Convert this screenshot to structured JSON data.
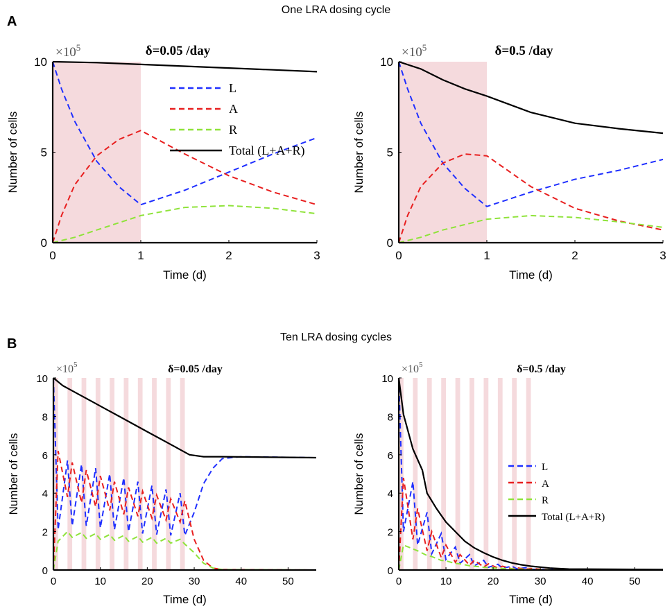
{
  "sections": [
    {
      "letter": "A",
      "title": "One LRA dosing cycle"
    },
    {
      "letter": "B",
      "title": "Ten LRA dosing cycles"
    }
  ],
  "colors": {
    "L": "#1f2fff",
    "A": "#e81f1f",
    "R": "#8fe33a",
    "Total": "#000000",
    "dose_band": "#f5dadd"
  },
  "chart_data": [
    {
      "type": "line",
      "section": "A",
      "title": "δ=0.05 /day",
      "multiplier": "×10^5",
      "xlabel": "Time (d)",
      "ylabel": "Number of cells",
      "xlim": [
        0,
        3
      ],
      "ylim": [
        0,
        10
      ],
      "xticks": [
        "0",
        "1",
        "2",
        "3"
      ],
      "yticks": [
        "0",
        "5",
        "10"
      ],
      "dose_intervals": [
        [
          0,
          1
        ]
      ],
      "legend": [
        "L",
        "A",
        "R",
        "Total (L+A+R)"
      ],
      "legend_position": "top-right",
      "series": [
        {
          "name": "L",
          "x": [
            0,
            0.1,
            0.25,
            0.5,
            0.75,
            1,
            1.5,
            2,
            2.5,
            3
          ],
          "values": [
            10,
            8.5,
            6.7,
            4.5,
            3.1,
            2.1,
            2.9,
            3.9,
            4.9,
            5.8
          ]
        },
        {
          "name": "A",
          "x": [
            0,
            0.1,
            0.25,
            0.5,
            0.75,
            1,
            1.5,
            2,
            2.5,
            3
          ],
          "values": [
            0,
            1.5,
            3.2,
            4.8,
            5.7,
            6.2,
            4.9,
            3.7,
            2.8,
            2.1
          ]
        },
        {
          "name": "R",
          "x": [
            0,
            0.25,
            0.5,
            0.75,
            1,
            1.5,
            2,
            2.5,
            3
          ],
          "values": [
            0,
            0.3,
            0.7,
            1.1,
            1.5,
            1.95,
            2.05,
            1.9,
            1.6
          ]
        },
        {
          "name": "Total (L+A+R)",
          "x": [
            0,
            0.5,
            1,
            1.5,
            2,
            2.5,
            3
          ],
          "values": [
            10,
            9.95,
            9.85,
            9.75,
            9.65,
            9.55,
            9.45
          ]
        }
      ]
    },
    {
      "type": "line",
      "section": "A",
      "title": "δ=0.5 /day",
      "multiplier": "×10^5",
      "xlabel": "Time (d)",
      "ylabel": "Number of cells",
      "xlim": [
        0,
        3
      ],
      "ylim": [
        0,
        10
      ],
      "xticks": [
        "0",
        "1",
        "2",
        "3"
      ],
      "yticks": [
        "0",
        "5",
        "10"
      ],
      "dose_intervals": [
        [
          0,
          1
        ]
      ],
      "series": [
        {
          "name": "L",
          "x": [
            0,
            0.1,
            0.25,
            0.5,
            0.75,
            1,
            1.5,
            2,
            2.5,
            3
          ],
          "values": [
            10,
            8.5,
            6.6,
            4.4,
            3.0,
            2.0,
            2.8,
            3.5,
            4.0,
            4.6
          ]
        },
        {
          "name": "A",
          "x": [
            0,
            0.1,
            0.25,
            0.5,
            0.75,
            1,
            1.5,
            2,
            2.5,
            3
          ],
          "values": [
            0,
            1.5,
            3.1,
            4.4,
            4.9,
            4.8,
            3.1,
            1.9,
            1.2,
            0.7
          ]
        },
        {
          "name": "R",
          "x": [
            0,
            0.25,
            0.5,
            0.75,
            1,
            1.5,
            2,
            2.5,
            3
          ],
          "values": [
            0,
            0.3,
            0.7,
            1.0,
            1.3,
            1.5,
            1.4,
            1.15,
            0.85
          ]
        },
        {
          "name": "Total (L+A+R)",
          "x": [
            0,
            0.25,
            0.5,
            0.75,
            1,
            1.5,
            2,
            2.5,
            3
          ],
          "values": [
            10,
            9.6,
            9.0,
            8.5,
            8.1,
            7.2,
            6.6,
            6.3,
            6.05
          ]
        }
      ]
    },
    {
      "type": "line",
      "section": "B",
      "title": "δ=0.05 /day",
      "multiplier": "×10^5",
      "xlabel": "Time (d)",
      "ylabel": "Number of cells",
      "xlim": [
        0,
        56
      ],
      "ylim": [
        0,
        10
      ],
      "xticks": [
        "0",
        "10",
        "20",
        "30",
        "40",
        "50"
      ],
      "yticks": [
        "0",
        "2",
        "4",
        "6",
        "8",
        "10"
      ],
      "dose_intervals": [
        [
          0,
          1
        ],
        [
          3,
          4
        ],
        [
          6,
          7
        ],
        [
          9,
          10
        ],
        [
          12,
          13
        ],
        [
          15,
          16
        ],
        [
          18,
          19
        ],
        [
          21,
          22
        ],
        [
          24,
          25
        ],
        [
          27,
          28
        ]
      ],
      "series": [
        {
          "name": "L",
          "x": [
            0,
            1,
            3,
            4,
            6,
            7,
            9,
            10,
            12,
            13,
            15,
            16,
            18,
            19,
            21,
            22,
            24,
            25,
            27,
            28,
            30,
            32,
            34,
            36,
            40,
            56
          ],
          "values": [
            10,
            2.1,
            5.7,
            2.3,
            5.5,
            2.3,
            5.3,
            2.2,
            5.0,
            2.1,
            4.8,
            2.0,
            4.6,
            1.9,
            4.4,
            1.85,
            4.2,
            1.8,
            4.0,
            1.8,
            3.0,
            4.5,
            5.3,
            5.8,
            5.9,
            5.85
          ]
        },
        {
          "name": "A",
          "x": [
            0,
            1,
            3,
            4,
            6,
            7,
            9,
            10,
            12,
            13,
            15,
            16,
            18,
            19,
            21,
            22,
            24,
            25,
            27,
            28,
            30,
            32,
            34,
            36,
            56
          ],
          "values": [
            0,
            6.2,
            3.8,
            5.6,
            3.5,
            5.2,
            3.3,
            4.9,
            3.1,
            4.6,
            2.9,
            4.3,
            2.8,
            4.1,
            2.7,
            3.9,
            2.6,
            3.7,
            2.5,
            3.6,
            1.6,
            0.5,
            0.1,
            0.02,
            0
          ]
        },
        {
          "name": "R",
          "x": [
            0,
            1,
            3,
            4,
            6,
            7,
            9,
            10,
            12,
            13,
            15,
            16,
            18,
            19,
            21,
            22,
            24,
            25,
            27,
            28,
            30,
            32,
            34,
            36,
            56
          ],
          "values": [
            0,
            1.5,
            2.0,
            1.7,
            1.95,
            1.65,
            1.9,
            1.6,
            1.85,
            1.55,
            1.8,
            1.5,
            1.75,
            1.45,
            1.7,
            1.4,
            1.65,
            1.4,
            1.6,
            1.35,
            0.9,
            0.35,
            0.1,
            0.02,
            0
          ]
        },
        {
          "name": "Total (L+A+R)",
          "x": [
            0,
            2,
            5,
            8,
            11,
            14,
            17,
            20,
            23,
            26,
            29,
            32,
            36,
            56
          ],
          "values": [
            10,
            9.6,
            9.2,
            8.8,
            8.4,
            8.0,
            7.6,
            7.2,
            6.8,
            6.4,
            6.0,
            5.9,
            5.9,
            5.85
          ]
        }
      ]
    },
    {
      "type": "line",
      "section": "B",
      "title": "δ=0.5 /day",
      "multiplier": "×10^5",
      "xlabel": "Time (d)",
      "ylabel": "Number of cells",
      "xlim": [
        0,
        56
      ],
      "ylim": [
        0,
        10
      ],
      "xticks": [
        "0",
        "10",
        "20",
        "30",
        "40",
        "50"
      ],
      "yticks": [
        "0",
        "2",
        "4",
        "6",
        "8",
        "10"
      ],
      "dose_intervals": [
        [
          0,
          1
        ],
        [
          3,
          4
        ],
        [
          6,
          7
        ],
        [
          9,
          10
        ],
        [
          12,
          13
        ],
        [
          15,
          16
        ],
        [
          18,
          19
        ],
        [
          21,
          22
        ],
        [
          24,
          25
        ],
        [
          27,
          28
        ]
      ],
      "legend": [
        "L",
        "A",
        "R",
        "Total (L+A+R)"
      ],
      "legend_position": "middle-right",
      "series": [
        {
          "name": "L",
          "x": [
            0,
            1,
            3,
            4,
            6,
            7,
            9,
            10,
            12,
            13,
            15,
            16,
            18,
            19,
            21,
            22,
            24,
            25,
            27,
            28,
            32,
            56
          ],
          "values": [
            10,
            2.0,
            4.6,
            1.3,
            3.0,
            0.85,
            1.9,
            0.55,
            1.2,
            0.35,
            0.8,
            0.22,
            0.5,
            0.14,
            0.3,
            0.09,
            0.2,
            0.06,
            0.12,
            0.04,
            0.02,
            0
          ]
        },
        {
          "name": "A",
          "x": [
            0,
            1,
            3,
            4,
            6,
            7,
            9,
            10,
            12,
            13,
            15,
            16,
            18,
            19,
            21,
            22,
            24,
            25,
            27,
            28,
            32,
            56
          ],
          "values": [
            0,
            4.8,
            1.6,
            3.2,
            1.0,
            2.0,
            0.65,
            1.3,
            0.4,
            0.8,
            0.25,
            0.5,
            0.16,
            0.32,
            0.1,
            0.2,
            0.06,
            0.12,
            0.04,
            0.08,
            0.01,
            0
          ]
        },
        {
          "name": "R",
          "x": [
            0,
            1,
            3,
            4,
            6,
            7,
            9,
            10,
            12,
            13,
            15,
            16,
            18,
            19,
            21,
            22,
            24,
            25,
            27,
            28,
            32,
            56
          ],
          "values": [
            0,
            1.3,
            1.1,
            1.0,
            0.75,
            0.7,
            0.5,
            0.48,
            0.34,
            0.32,
            0.22,
            0.2,
            0.14,
            0.13,
            0.09,
            0.08,
            0.06,
            0.05,
            0.04,
            0.03,
            0.01,
            0
          ]
        },
        {
          "name": "Total (L+A+R)",
          "x": [
            0,
            1,
            3,
            5,
            6,
            8,
            10,
            12,
            14,
            16,
            18,
            20,
            22,
            24,
            26,
            28,
            32,
            36,
            56
          ],
          "values": [
            10,
            8.1,
            6.3,
            5.2,
            4.0,
            3.2,
            2.5,
            2.0,
            1.5,
            1.15,
            0.9,
            0.68,
            0.5,
            0.37,
            0.27,
            0.2,
            0.1,
            0.05,
            0.02
          ]
        }
      ]
    }
  ]
}
